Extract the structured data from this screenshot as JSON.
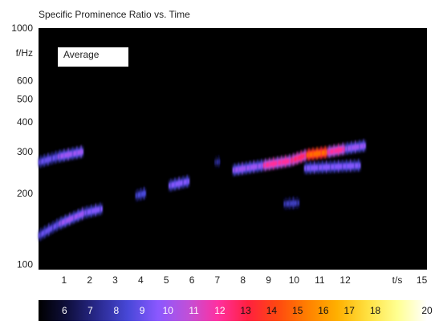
{
  "chart_data": {
    "type": "heatmap",
    "title": "Specific Prominence Ratio vs. Time",
    "xlabel": "t/s",
    "ylabel": "f/Hz",
    "annotation": "Average",
    "y_scale": "log",
    "ylim": [
      95,
      1000
    ],
    "xlim": [
      0,
      15.2
    ],
    "x_ticks": [
      {
        "value": 1,
        "label": "1"
      },
      {
        "value": 2,
        "label": "2"
      },
      {
        "value": 3,
        "label": "3"
      },
      {
        "value": 4,
        "label": "4"
      },
      {
        "value": 5,
        "label": "5"
      },
      {
        "value": 6,
        "label": "6"
      },
      {
        "value": 7,
        "label": "7"
      },
      {
        "value": 8,
        "label": "8"
      },
      {
        "value": 9,
        "label": "9"
      },
      {
        "value": 10,
        "label": "10"
      },
      {
        "value": 11,
        "label": "11"
      },
      {
        "value": 12,
        "label": "12"
      },
      {
        "value": 15,
        "label": "15"
      }
    ],
    "y_ticks": [
      {
        "value": 1000,
        "label": "1000"
      },
      {
        "value": 600,
        "label": "600"
      },
      {
        "value": 500,
        "label": "500"
      },
      {
        "value": 400,
        "label": "400"
      },
      {
        "value": 300,
        "label": "300"
      },
      {
        "value": 200,
        "label": "200"
      },
      {
        "value": 100,
        "label": "100"
      }
    ],
    "colorbar": {
      "labels": [
        "6",
        "7",
        "8",
        "9",
        "10",
        "11",
        "12",
        "13",
        "14",
        "15",
        "16",
        "17",
        "18",
        "20"
      ],
      "range": [
        5,
        20
      ],
      "colors": [
        "#000000",
        "#101040",
        "#2a2a90",
        "#4848d8",
        "#8a58ff",
        "#c050d8",
        "#ff30a0",
        "#ff2040",
        "#ff4810",
        "#ff8000",
        "#ffb000",
        "#ffe040",
        "#ffff90",
        "#ffffff"
      ]
    },
    "traces": [
      {
        "t0": 0.0,
        "t1": 0.75,
        "f0": 270,
        "f1": 285,
        "v": 9.0
      },
      {
        "t0": 0.75,
        "t1": 1.75,
        "f0": 285,
        "f1": 300,
        "v": 10.0
      },
      {
        "t0": 0.0,
        "t1": 0.8,
        "f0": 132,
        "f1": 148,
        "v": 9.0
      },
      {
        "t0": 0.8,
        "t1": 1.8,
        "f0": 148,
        "f1": 165,
        "v": 10.0
      },
      {
        "t0": 1.8,
        "t1": 2.5,
        "f0": 165,
        "f1": 172,
        "v": 9.5
      },
      {
        "t0": 3.8,
        "t1": 4.2,
        "f0": 195,
        "f1": 200,
        "v": 8.5
      },
      {
        "t0": 5.1,
        "t1": 5.9,
        "f0": 215,
        "f1": 225,
        "v": 9.5
      },
      {
        "t0": 6.9,
        "t1": 7.1,
        "f0": 270,
        "f1": 272,
        "v": 7.5
      },
      {
        "t0": 7.6,
        "t1": 8.8,
        "f0": 250,
        "f1": 262,
        "v": 10.0
      },
      {
        "t0": 8.8,
        "t1": 9.9,
        "f0": 262,
        "f1": 275,
        "v": 12.0
      },
      {
        "t0": 9.9,
        "t1": 10.5,
        "f0": 275,
        "f1": 290,
        "v": 12.5
      },
      {
        "t0": 10.5,
        "t1": 11.3,
        "f0": 290,
        "f1": 298,
        "v": 15.0
      },
      {
        "t0": 11.3,
        "t1": 12.0,
        "f0": 298,
        "f1": 308,
        "v": 12.0
      },
      {
        "t0": 12.0,
        "t1": 12.8,
        "f0": 308,
        "f1": 318,
        "v": 10.0
      },
      {
        "t0": 10.4,
        "t1": 12.6,
        "f0": 255,
        "f1": 262,
        "v": 9.5
      },
      {
        "t0": 9.6,
        "t1": 10.2,
        "f0": 180,
        "f1": 182,
        "v": 8.0
      }
    ]
  }
}
